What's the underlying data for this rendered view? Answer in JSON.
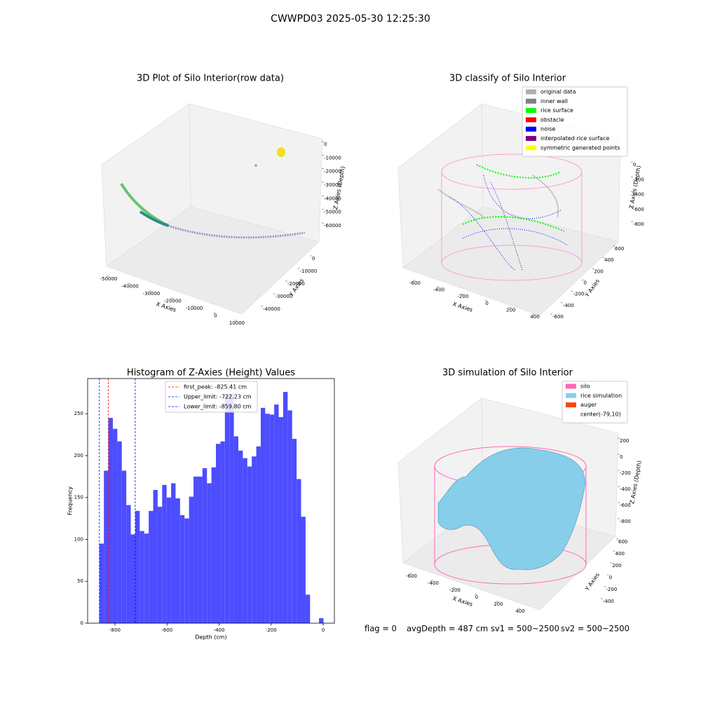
{
  "title": "CWWPD03 2025-05-30 12:25:30",
  "footer": [
    "flag = 0",
    "avgDepth = 487 cm",
    "sv1 = 500~2500",
    "sv2 = 500~2500"
  ],
  "chart_data": [
    {
      "type": "scatter3d",
      "title": "3D Plot of Silo Interior(row data)",
      "xlabel": "X Axies",
      "ylabel": "Y Axies",
      "zlabel": "Z Axies (Depth)",
      "xlim": [
        -50000,
        10000
      ],
      "xticks": [
        -50000,
        -40000,
        -30000,
        -20000,
        -10000,
        0,
        10000
      ],
      "ylim": [
        0,
        -40000
      ],
      "yticks": [
        0,
        -10000,
        -20000,
        -30000,
        -40000
      ],
      "zlim": [
        0,
        -60000
      ],
      "zticks": [
        0,
        -10000,
        -20000,
        -30000,
        -40000,
        -50000,
        -60000
      ]
    },
    {
      "type": "scatter3d",
      "title": "3D classify of Silo Interior",
      "xlabel": "X Axies",
      "ylabel": "Y Axies",
      "zlabel": "Z Axies (Depth)",
      "xlim": [
        -600,
        400
      ],
      "xticks": [
        -600,
        -400,
        -200,
        0,
        200,
        400
      ],
      "ylim": [
        600,
        -600
      ],
      "yticks": [
        600,
        400,
        200,
        0,
        -200,
        -400,
        -600
      ],
      "zlim": [
        0,
        -800
      ],
      "zticks": [
        0,
        -200,
        -400,
        -600,
        -800
      ],
      "legend": [
        {
          "name": "original data",
          "color": "#b0b0b0"
        },
        {
          "name": "inner wall",
          "color": "#808080"
        },
        {
          "name": "rice surface",
          "color": "#00ff00"
        },
        {
          "name": "obstacle",
          "color": "#ff0000"
        },
        {
          "name": "noise",
          "color": "#0000ff"
        },
        {
          "name": "interpolated rice surface",
          "color": "#800080"
        },
        {
          "name": "symmetric generated points",
          "color": "#ffff00"
        }
      ]
    },
    {
      "type": "histogram",
      "title": "Histogram of Z-Axies (Height) Values",
      "xlabel": "Depth (cm)",
      "ylabel": "Frequency",
      "color": "#4d4dff",
      "bins": [
        -859.8,
        -842.58,
        -825.36,
        -808.14,
        -790.92,
        -773.7,
        -756.48,
        -739.26,
        -722.04,
        -704.82,
        -687.6,
        -670.38,
        -653.16,
        -635.94,
        -618.72,
        -601.5,
        -584.28,
        -567.06,
        -549.84,
        -532.62,
        -515.4,
        -498.18,
        -480.96,
        -463.74,
        -446.52,
        -429.3,
        -412.08,
        -394.86,
        -377.64,
        -360.42,
        -343.2,
        -325.98,
        -308.76,
        -291.54,
        -274.32,
        -257.1,
        -239.88,
        -222.66,
        -205.44,
        -188.22,
        -171.0,
        -153.78,
        -136.56,
        -119.34,
        -102.12,
        -84.9,
        -67.68,
        -50.46,
        -33.24,
        -16.02,
        1.2
      ],
      "values": [
        95,
        182,
        245,
        232,
        217,
        182,
        141,
        106,
        134,
        110,
        107,
        134,
        159,
        139,
        165,
        150,
        167,
        149,
        129,
        125,
        151,
        175,
        175,
        185,
        167,
        186,
        214,
        217,
        273,
        274,
        223,
        206,
        197,
        187,
        199,
        211,
        257,
        250,
        249,
        261,
        246,
        276,
        254,
        220,
        172,
        127,
        34,
        0,
        0,
        6
      ],
      "xlim": [
        -905,
        43
      ],
      "xticks": [
        -800,
        -600,
        -400,
        -200,
        0
      ],
      "ylim": [
        0,
        292
      ],
      "yticks": [
        0,
        50,
        100,
        150,
        200,
        250
      ],
      "vlines": [
        {
          "name": "first_peak: -825.41 cm",
          "value": -825.41,
          "color": "#ff0000"
        },
        {
          "name": "Upper_limit: -722.23 cm",
          "value": -722.23,
          "color": "#0000ff"
        },
        {
          "name": "Lower_limit: -859.80 cm",
          "value": -859.8,
          "color": "#0000ff"
        }
      ]
    },
    {
      "type": "surface3d",
      "title": "3D simulation of Silo Interior",
      "xlabel": "X Axies",
      "ylabel": "Y Axies",
      "zlabel": "Z Axies (Depth)",
      "xlim": [
        -600,
        400
      ],
      "xticks": [
        -600,
        -400,
        -200,
        0,
        200,
        400
      ],
      "ylim": [
        600,
        -400
      ],
      "yticks": [
        600,
        400,
        200,
        0,
        -200,
        -400
      ],
      "zlim": [
        200,
        -800
      ],
      "zticks": [
        200,
        0,
        -200,
        -400,
        -600,
        -800
      ],
      "legend": [
        {
          "name": "silo",
          "color": "#ff69b4"
        },
        {
          "name": "rice simulation",
          "color": "#87ceeb"
        },
        {
          "name": "auger",
          "color": "#ff4500"
        },
        {
          "name": "center(-79,10)",
          "color": "#ffffff"
        }
      ]
    }
  ]
}
